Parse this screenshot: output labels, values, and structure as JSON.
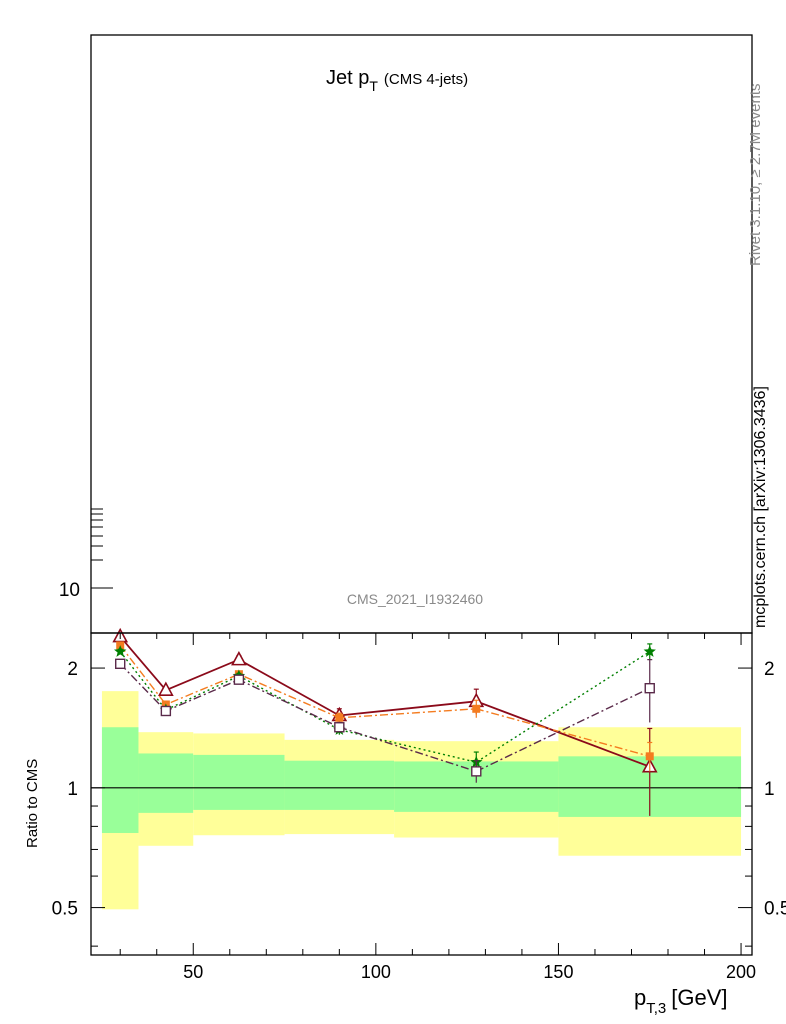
{
  "main_panel": {
    "title": "Jet p",
    "title_sub": "T",
    "title_suffix": "(CMS 4-jets)",
    "analysis_id": "CMS_2021_I1932460",
    "y_tick_label": "10"
  },
  "side_labels": {
    "rivet": "Rivet 3.1.10, ≥ 2.7M events",
    "source": "mcplots.cern.ch [arXiv:1306.3436]"
  },
  "ratio_panel": {
    "ylabel": "Ratio to CMS",
    "xlabel_main": "p",
    "xlabel_sub": "T,3",
    "xlabel_unit": "[GeV]",
    "x_ticks": [
      "50",
      "100",
      "150",
      "200"
    ],
    "y_ticks": [
      "0.5",
      "1",
      "2"
    ]
  },
  "colors": {
    "band_inner": "#99ff99",
    "band_outer": "#ffff99",
    "dark_red": "#8b0a1a",
    "orange": "#f47c20",
    "green": "#007f00",
    "purple": "#5a2a4a"
  },
  "chart_data": {
    "type": "line",
    "x_scale": "linear",
    "y_scale": "log",
    "xlim": [
      22,
      203
    ],
    "ylim": [
      0.38,
      2.45
    ],
    "bins": [
      {
        "lo": 25,
        "hi": 35,
        "inner": [
          0.77,
          1.42
        ],
        "outer": [
          0.495,
          1.75
        ]
      },
      {
        "lo": 35,
        "hi": 50,
        "inner": [
          0.865,
          1.22
        ],
        "outer": [
          0.715,
          1.38
        ]
      },
      {
        "lo": 50,
        "hi": 75,
        "inner": [
          0.88,
          1.21
        ],
        "outer": [
          0.76,
          1.37
        ]
      },
      {
        "lo": 75,
        "hi": 105,
        "inner": [
          0.88,
          1.17
        ],
        "outer": [
          0.765,
          1.32
        ]
      },
      {
        "lo": 105,
        "hi": 150,
        "inner": [
          0.87,
          1.165
        ],
        "outer": [
          0.75,
          1.31
        ]
      },
      {
        "lo": 150,
        "hi": 200,
        "inner": [
          0.845,
          1.2
        ],
        "outer": [
          0.675,
          1.42
        ]
      }
    ],
    "series": [
      {
        "marker": "triangle",
        "color": "#8b0a1a",
        "dash": "",
        "x": [
          30,
          42.5,
          62.5,
          90,
          127.5,
          175
        ],
        "y": [
          2.4,
          1.76,
          2.1,
          1.52,
          1.65,
          1.13
        ],
        "err": [
          0.04,
          0.03,
          0.05,
          0.06,
          0.12,
          0.28
        ]
      },
      {
        "marker": "filled-square",
        "color": "#f47c20",
        "dash": "8,3,2,3",
        "x": [
          30,
          42.5,
          62.5,
          90,
          127.5,
          175
        ],
        "y": [
          2.28,
          1.62,
          1.93,
          1.5,
          1.58,
          1.2
        ],
        "err": [
          0.03,
          0.02,
          0.03,
          0.04,
          0.08,
          0.1
        ]
      },
      {
        "marker": "star",
        "color": "#007f00",
        "dash": "2,3",
        "x": [
          30,
          42.5,
          62.5,
          90,
          127.5,
          175
        ],
        "y": [
          2.2,
          1.57,
          1.91,
          1.4,
          1.16,
          2.2
        ],
        "err": [
          0.03,
          0.02,
          0.03,
          0.04,
          0.07,
          0.1
        ]
      },
      {
        "marker": "open-square",
        "color": "#5a2a4a",
        "dash": "8,3,2,3",
        "x": [
          30,
          42.5,
          62.5,
          90,
          127.5,
          175
        ],
        "y": [
          2.05,
          1.56,
          1.87,
          1.42,
          1.1,
          1.78
        ],
        "err": [
          0.03,
          0.02,
          0.03,
          0.04,
          0.07,
          0.32
        ]
      }
    ]
  }
}
